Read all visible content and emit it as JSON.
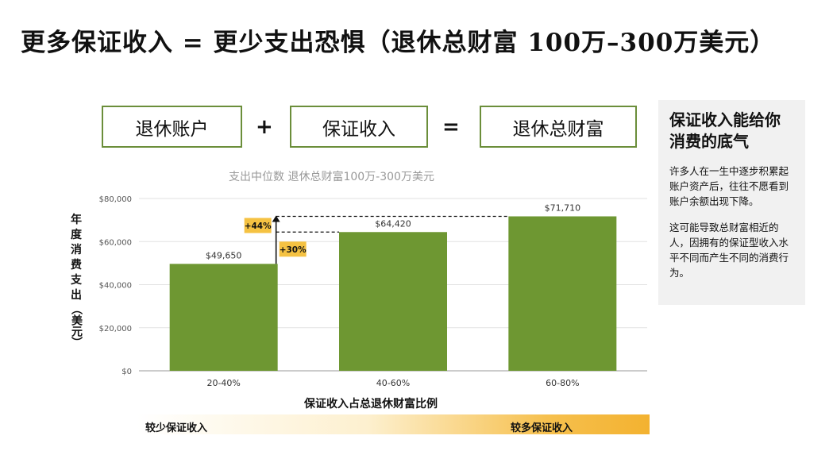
{
  "title": "更多保证收入 = 更少支出恐惧（退休总财富 100万–300万美元）",
  "equation": {
    "box1": "退休账户",
    "plus": "+",
    "box2": "保证收入",
    "equals": "=",
    "box3": "退休总财富"
  },
  "sidebar": {
    "heading": "保证收入能给你消费的底气",
    "paragraph1": "许多人在一生中逐步积累起账户资产后，往往不愿看到账户余额出现下降。",
    "paragraph2": "这可能导致总财富相近的人，因拥有的保证型收入水平不同而产生不同的消费行为。"
  },
  "gradient": {
    "left_label": "较少保证收入",
    "right_label": "较多保证收入"
  },
  "chart_data": {
    "type": "bar",
    "title": "支出中位数  退休总财富100万-300万美元",
    "ylabel_main": "年度消费支出",
    "ylabel_unit": "（美元）",
    "xlabel": "保证收入占总退休财富比例",
    "categories": [
      "20-40%",
      "40-60%",
      "60-80%"
    ],
    "values": [
      49650,
      64420,
      71710
    ],
    "value_labels": [
      "$49,650",
      "$64,420",
      "$71,710"
    ],
    "ylim": [
      0,
      80000
    ],
    "yticks": [
      0,
      20000,
      40000,
      60000,
      80000
    ],
    "ytick_labels": [
      "$0",
      "$20,000",
      "$40,000",
      "$60,000",
      "$80,000"
    ],
    "bar_color": "#6e9732",
    "annotations": [
      {
        "label": "+44%",
        "from": 49650,
        "to": 71710
      },
      {
        "label": "+30%",
        "from": 49650,
        "to": 64420
      }
    ],
    "annotation_color": "#f5c242",
    "grid": true
  }
}
